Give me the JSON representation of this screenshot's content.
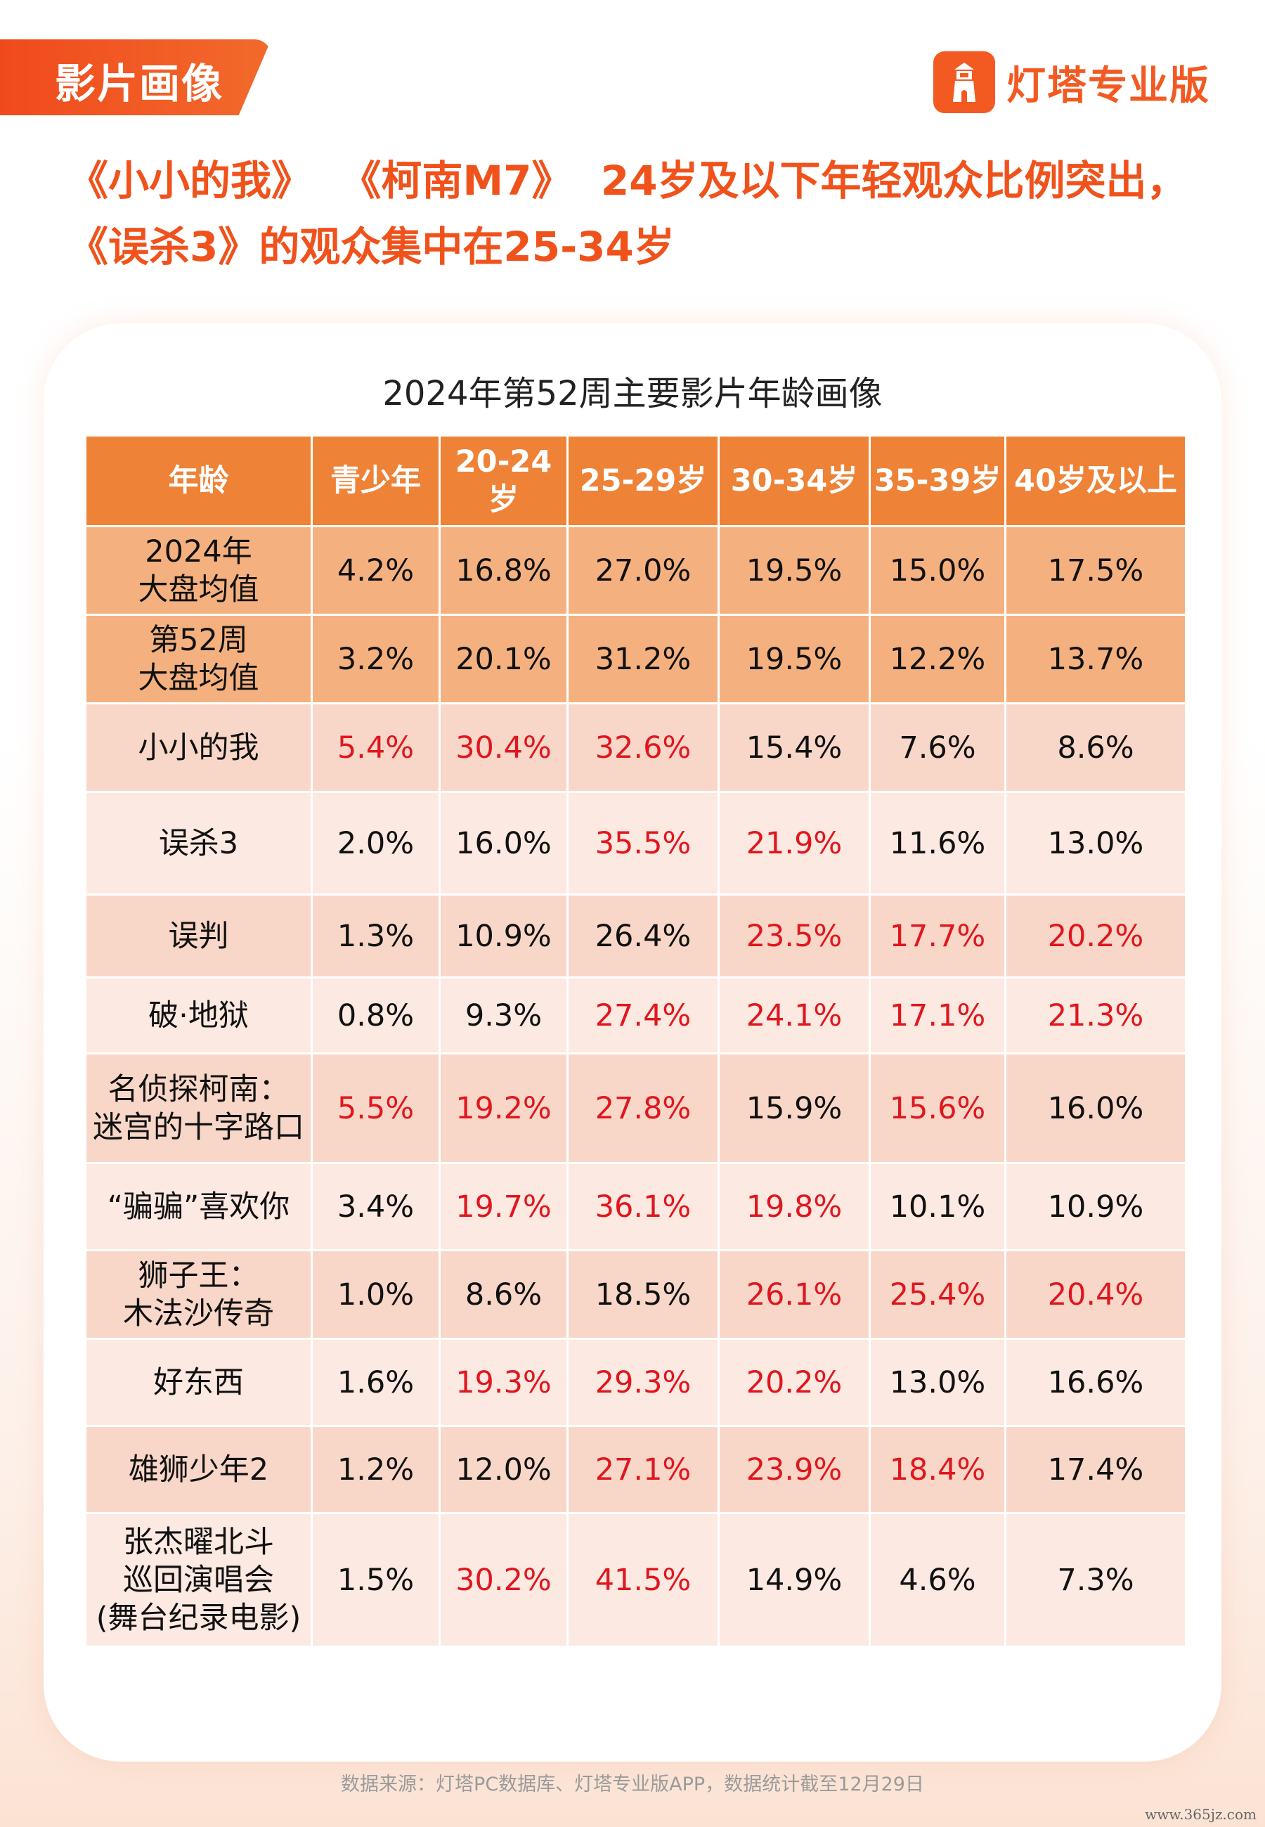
{
  "section_tag": "影片画像",
  "brand": {
    "name": "灯塔专业版",
    "logo_icon": "lighthouse-icon",
    "color": "#f25a22"
  },
  "headline": {
    "line1": "《小小的我》  《柯南M7》  24岁及以下年轻观众比例突出，",
    "line2": "《误杀3》的观众集中在25-34岁"
  },
  "table": {
    "title": "2024年第52周主要影片年龄画像",
    "headers": [
      "年龄",
      "青少年",
      "20-24岁",
      "25-29岁",
      "30-34岁",
      "35-39岁",
      "40岁及以上"
    ],
    "highlight_color": "#e0161e",
    "rows": [
      {
        "label": "2024年\n大盘均值",
        "cells": [
          {
            "v": "4.2%",
            "hl": false
          },
          {
            "v": "16.8%",
            "hl": false
          },
          {
            "v": "27.0%",
            "hl": false
          },
          {
            "v": "19.5%",
            "hl": false
          },
          {
            "v": "15.0%",
            "hl": false
          },
          {
            "v": "17.5%",
            "hl": false
          }
        ]
      },
      {
        "label": "第52周\n大盘均值",
        "cells": [
          {
            "v": "3.2%",
            "hl": false
          },
          {
            "v": "20.1%",
            "hl": false
          },
          {
            "v": "31.2%",
            "hl": false
          },
          {
            "v": "19.5%",
            "hl": false
          },
          {
            "v": "12.2%",
            "hl": false
          },
          {
            "v": "13.7%",
            "hl": false
          }
        ]
      },
      {
        "label": "小小的我",
        "cells": [
          {
            "v": "5.4%",
            "hl": true
          },
          {
            "v": "30.4%",
            "hl": true
          },
          {
            "v": "32.6%",
            "hl": true
          },
          {
            "v": "15.4%",
            "hl": false
          },
          {
            "v": "7.6%",
            "hl": false
          },
          {
            "v": "8.6%",
            "hl": false
          }
        ]
      },
      {
        "label": "误杀3",
        "cells": [
          {
            "v": "2.0%",
            "hl": false
          },
          {
            "v": "16.0%",
            "hl": false
          },
          {
            "v": "35.5%",
            "hl": true
          },
          {
            "v": "21.9%",
            "hl": true
          },
          {
            "v": "11.6%",
            "hl": false
          },
          {
            "v": "13.0%",
            "hl": false
          }
        ]
      },
      {
        "label": "误判",
        "cells": [
          {
            "v": "1.3%",
            "hl": false
          },
          {
            "v": "10.9%",
            "hl": false
          },
          {
            "v": "26.4%",
            "hl": false
          },
          {
            "v": "23.5%",
            "hl": true
          },
          {
            "v": "17.7%",
            "hl": true
          },
          {
            "v": "20.2%",
            "hl": true
          }
        ]
      },
      {
        "label": "破·地狱",
        "cells": [
          {
            "v": "0.8%",
            "hl": false
          },
          {
            "v": "9.3%",
            "hl": false
          },
          {
            "v": "27.4%",
            "hl": true
          },
          {
            "v": "24.1%",
            "hl": true
          },
          {
            "v": "17.1%",
            "hl": true
          },
          {
            "v": "21.3%",
            "hl": true
          }
        ]
      },
      {
        "label": "名侦探柯南：\n迷宫的十字路口",
        "cells": [
          {
            "v": "5.5%",
            "hl": true
          },
          {
            "v": "19.2%",
            "hl": true
          },
          {
            "v": "27.8%",
            "hl": true
          },
          {
            "v": "15.9%",
            "hl": false
          },
          {
            "v": "15.6%",
            "hl": true
          },
          {
            "v": "16.0%",
            "hl": false
          }
        ]
      },
      {
        "label": "“骗骗”喜欢你",
        "cells": [
          {
            "v": "3.4%",
            "hl": false
          },
          {
            "v": "19.7%",
            "hl": true
          },
          {
            "v": "36.1%",
            "hl": true
          },
          {
            "v": "19.8%",
            "hl": true
          },
          {
            "v": "10.1%",
            "hl": false
          },
          {
            "v": "10.9%",
            "hl": false
          }
        ]
      },
      {
        "label": "狮子王：\n木法沙传奇",
        "cells": [
          {
            "v": "1.0%",
            "hl": false
          },
          {
            "v": "8.6%",
            "hl": false
          },
          {
            "v": "18.5%",
            "hl": false
          },
          {
            "v": "26.1%",
            "hl": true
          },
          {
            "v": "25.4%",
            "hl": true
          },
          {
            "v": "20.4%",
            "hl": true
          }
        ]
      },
      {
        "label": "好东西",
        "cells": [
          {
            "v": "1.6%",
            "hl": false
          },
          {
            "v": "19.3%",
            "hl": true
          },
          {
            "v": "29.3%",
            "hl": true
          },
          {
            "v": "20.2%",
            "hl": true
          },
          {
            "v": "13.0%",
            "hl": false
          },
          {
            "v": "16.6%",
            "hl": false
          }
        ]
      },
      {
        "label": "雄狮少年2",
        "cells": [
          {
            "v": "1.2%",
            "hl": false
          },
          {
            "v": "12.0%",
            "hl": false
          },
          {
            "v": "27.1%",
            "hl": true
          },
          {
            "v": "23.9%",
            "hl": true
          },
          {
            "v": "18.4%",
            "hl": true
          },
          {
            "v": "17.4%",
            "hl": false
          }
        ]
      },
      {
        "label": "张杰曜北斗\n巡回演唱会\n(舞台纪录电影)",
        "cells": [
          {
            "v": "1.5%",
            "hl": false
          },
          {
            "v": "30.2%",
            "hl": true
          },
          {
            "v": "41.5%",
            "hl": true
          },
          {
            "v": "14.9%",
            "hl": false
          },
          {
            "v": "4.6%",
            "hl": false
          },
          {
            "v": "7.3%",
            "hl": false
          }
        ]
      }
    ]
  },
  "footer": "数据来源：灯塔PC数据库、灯塔专业版APP，数据统计截至12月29日",
  "watermark": "www.365jz.com"
}
